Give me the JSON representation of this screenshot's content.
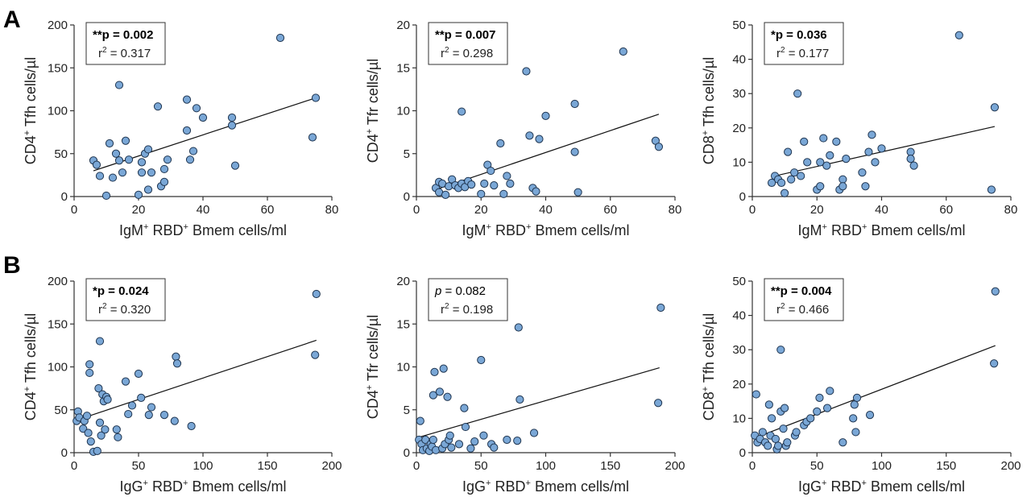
{
  "figure": {
    "rows": [
      {
        "letter": "A"
      },
      {
        "letter": "B"
      }
    ]
  },
  "chart_data": [
    {
      "type": "scatter",
      "row": 0,
      "col": 0,
      "p_label": "**p = 0.002",
      "p_bold": true,
      "r2_prefix": "r",
      "r2_sup": "2",
      "r2_value": " = 0.317",
      "xlabel": {
        "a": "IgM",
        "sa": "+",
        "b": " RBD",
        "sb": "+",
        "c": " Bmem cells/ml"
      },
      "ylabel": {
        "a": "CD4",
        "sa": "+",
        "b": " Tfh cells/µl"
      },
      "xlim": [
        0,
        80
      ],
      "ylim": [
        0,
        200
      ],
      "xticks": [
        0,
        20,
        40,
        60,
        80
      ],
      "yticks": [
        0,
        50,
        100,
        150,
        200
      ],
      "fit": [
        [
          6,
          30
        ],
        [
          75,
          115
        ]
      ],
      "points": [
        [
          6,
          42
        ],
        [
          7,
          37
        ],
        [
          8,
          24
        ],
        [
          10,
          1
        ],
        [
          11,
          62
        ],
        [
          12,
          22
        ],
        [
          13,
          50
        ],
        [
          14,
          130
        ],
        [
          14,
          42
        ],
        [
          15,
          28
        ],
        [
          16,
          65
        ],
        [
          17,
          43
        ],
        [
          20,
          2
        ],
        [
          21,
          40
        ],
        [
          21,
          28
        ],
        [
          22,
          50
        ],
        [
          23,
          55
        ],
        [
          23,
          8
        ],
        [
          24,
          28
        ],
        [
          26,
          105
        ],
        [
          27,
          12
        ],
        [
          28,
          17
        ],
        [
          28,
          32
        ],
        [
          29,
          43
        ],
        [
          35,
          113
        ],
        [
          35,
          77
        ],
        [
          36,
          43
        ],
        [
          37,
          53
        ],
        [
          38,
          103
        ],
        [
          40,
          92
        ],
        [
          49,
          92
        ],
        [
          49,
          83
        ],
        [
          50,
          36
        ],
        [
          64,
          185
        ],
        [
          74,
          69
        ],
        [
          75,
          115
        ]
      ]
    },
    {
      "type": "scatter",
      "row": 0,
      "col": 1,
      "p_label": "**p = 0.007",
      "p_bold": true,
      "r2_prefix": "r",
      "r2_sup": "2",
      "r2_value": " = 0.298",
      "xlabel": {
        "a": "IgM",
        "sa": "+",
        "b": " RBD",
        "sb": "+",
        "c": " Bmem cells/ml"
      },
      "ylabel": {
        "a": "CD4",
        "sa": "+",
        "b": " Tfr cells/µl"
      },
      "xlim": [
        0,
        80
      ],
      "ylim": [
        0,
        20
      ],
      "xticks": [
        0,
        20,
        40,
        60,
        80
      ],
      "yticks": [
        0,
        5,
        10,
        15,
        20
      ],
      "fit": [
        [
          6,
          0.8
        ],
        [
          75,
          9.6
        ]
      ],
      "points": [
        [
          6,
          1.0
        ],
        [
          7,
          1.7
        ],
        [
          7,
          0.5
        ],
        [
          8,
          1.5
        ],
        [
          9,
          0.2
        ],
        [
          10,
          1.2
        ],
        [
          11,
          2.0
        ],
        [
          12,
          1.3
        ],
        [
          13,
          1.0
        ],
        [
          14,
          1.5
        ],
        [
          14,
          9.9
        ],
        [
          15,
          1.1
        ],
        [
          16,
          1.8
        ],
        [
          17,
          1.4
        ],
        [
          20,
          0.3
        ],
        [
          21,
          1.5
        ],
        [
          22,
          3.7
        ],
        [
          23,
          3.0
        ],
        [
          24,
          1.3
        ],
        [
          26,
          6.2
        ],
        [
          27,
          0.3
        ],
        [
          28,
          2.4
        ],
        [
          29,
          1.5
        ],
        [
          34,
          14.6
        ],
        [
          35,
          7.1
        ],
        [
          36,
          1.0
        ],
        [
          37,
          0.6
        ],
        [
          38,
          6.7
        ],
        [
          40,
          9.4
        ],
        [
          49,
          10.8
        ],
        [
          49,
          5.2
        ],
        [
          50,
          0.5
        ],
        [
          64,
          16.9
        ],
        [
          74,
          6.5
        ],
        [
          75,
          5.8
        ]
      ]
    },
    {
      "type": "scatter",
      "row": 0,
      "col": 2,
      "p_label": "*p = 0.036",
      "p_bold": true,
      "r2_prefix": "r",
      "r2_sup": "2",
      "r2_value": " = 0.177",
      "xlabel": {
        "a": "IgM",
        "sa": "+",
        "b": " RBD",
        "sb": "+",
        "c": " Bmem cells/ml"
      },
      "ylabel": {
        "a": "CD8",
        "sa": "+",
        "b": " Tfh cells/µl"
      },
      "xlim": [
        0,
        80
      ],
      "ylim": [
        0,
        50
      ],
      "xticks": [
        0,
        20,
        40,
        60,
        80
      ],
      "yticks": [
        0,
        10,
        20,
        30,
        40,
        50
      ],
      "fit": [
        [
          6,
          5.8
        ],
        [
          75,
          20.4
        ]
      ],
      "points": [
        [
          6,
          4
        ],
        [
          7,
          6
        ],
        [
          8,
          5
        ],
        [
          9,
          4
        ],
        [
          10,
          1
        ],
        [
          11,
          13
        ],
        [
          12,
          5
        ],
        [
          13,
          7
        ],
        [
          14,
          30
        ],
        [
          15,
          6
        ],
        [
          16,
          16
        ],
        [
          17,
          10
        ],
        [
          20,
          2
        ],
        [
          21,
          3
        ],
        [
          21,
          10
        ],
        [
          22,
          17
        ],
        [
          23,
          9
        ],
        [
          24,
          12
        ],
        [
          26,
          16
        ],
        [
          27,
          2
        ],
        [
          28,
          5
        ],
        [
          28,
          3
        ],
        [
          29,
          11
        ],
        [
          34,
          7
        ],
        [
          35,
          3
        ],
        [
          36,
          13
        ],
        [
          37,
          18
        ],
        [
          38,
          10
        ],
        [
          40,
          14
        ],
        [
          49,
          13
        ],
        [
          49,
          11
        ],
        [
          50,
          9
        ],
        [
          64,
          47
        ],
        [
          74,
          2
        ],
        [
          75,
          26
        ]
      ]
    },
    {
      "type": "scatter",
      "row": 1,
      "col": 0,
      "p_label": "*p = 0.024",
      "p_bold": true,
      "r2_prefix": "r",
      "r2_sup": "2",
      "r2_value": " = 0.320",
      "xlabel": {
        "a": "IgG",
        "sa": "+",
        "b": " RBD",
        "sb": "+",
        "c": " Bmem cells/ml"
      },
      "ylabel": {
        "a": "CD4",
        "sa": "+",
        "b": " Tfh cells/µl"
      },
      "xlim": [
        0,
        200
      ],
      "ylim": [
        0,
        200
      ],
      "xticks": [
        0,
        50,
        100,
        150,
        200
      ],
      "yticks": [
        0,
        50,
        100,
        150,
        200
      ],
      "fit": [
        [
          2,
          38
        ],
        [
          188,
          131
        ]
      ],
      "points": [
        [
          2,
          37
        ],
        [
          3,
          48
        ],
        [
          4,
          41
        ],
        [
          7,
          28
        ],
        [
          8,
          37
        ],
        [
          10,
          43
        ],
        [
          11,
          23
        ],
        [
          12,
          93
        ],
        [
          12,
          103
        ],
        [
          13,
          13
        ],
        [
          15,
          1
        ],
        [
          18,
          2
        ],
        [
          19,
          75
        ],
        [
          20,
          35
        ],
        [
          20,
          130
        ],
        [
          21,
          20
        ],
        [
          22,
          68
        ],
        [
          23,
          60
        ],
        [
          24,
          27
        ],
        [
          25,
          65
        ],
        [
          26,
          62
        ],
        [
          33,
          27
        ],
        [
          34,
          18
        ],
        [
          40,
          83
        ],
        [
          42,
          45
        ],
        [
          45,
          55
        ],
        [
          50,
          92
        ],
        [
          52,
          64
        ],
        [
          58,
          44
        ],
        [
          60,
          53
        ],
        [
          70,
          44
        ],
        [
          78,
          37
        ],
        [
          79,
          112
        ],
        [
          80,
          104
        ],
        [
          91,
          31
        ],
        [
          187,
          114
        ],
        [
          188,
          185
        ]
      ]
    },
    {
      "type": "scatter",
      "row": 1,
      "col": 1,
      "p_label": "p = 0.082",
      "p_bold": false,
      "r2_prefix": "r",
      "r2_sup": "2",
      "r2_value": " = 0.198",
      "xlabel": {
        "a": "IgG",
        "sa": "+",
        "b": " RBD",
        "sb": "+",
        "c": " Bmem cells/ml"
      },
      "ylabel": {
        "a": "CD4",
        "sa": "+",
        "b": " Tfr cells/µl"
      },
      "xlim": [
        0,
        200
      ],
      "ylim": [
        0,
        20
      ],
      "xticks": [
        0,
        50,
        100,
        150,
        200
      ],
      "yticks": [
        0,
        5,
        10,
        15,
        20
      ],
      "fit": [
        [
          2,
          1.8
        ],
        [
          188,
          9.9
        ]
      ],
      "points": [
        [
          2,
          1.5
        ],
        [
          3,
          3.7
        ],
        [
          4,
          1.0
        ],
        [
          5,
          0.3
        ],
        [
          7,
          1.5
        ],
        [
          8,
          0.5
        ],
        [
          10,
          0.2
        ],
        [
          11,
          1.0
        ],
        [
          12,
          0.7
        ],
        [
          13,
          1.5
        ],
        [
          13,
          6.7
        ],
        [
          14,
          9.4
        ],
        [
          15,
          0.3
        ],
        [
          18,
          7.1
        ],
        [
          20,
          0.5
        ],
        [
          21,
          9.8
        ],
        [
          22,
          1.0
        ],
        [
          24,
          6.5
        ],
        [
          25,
          1.5
        ],
        [
          26,
          2.0
        ],
        [
          27,
          0.6
        ],
        [
          33,
          1.0
        ],
        [
          37,
          5.2
        ],
        [
          38,
          3.0
        ],
        [
          42,
          0.5
        ],
        [
          45,
          1.3
        ],
        [
          50,
          10.8
        ],
        [
          52,
          2.0
        ],
        [
          58,
          1.0
        ],
        [
          60,
          0.6
        ],
        [
          70,
          1.5
        ],
        [
          78,
          1.4
        ],
        [
          79,
          14.6
        ],
        [
          80,
          6.2
        ],
        [
          91,
          2.3
        ],
        [
          187,
          5.8
        ],
        [
          189,
          16.9
        ]
      ]
    },
    {
      "type": "scatter",
      "row": 1,
      "col": 2,
      "p_label": "**p = 0.004",
      "p_bold": true,
      "r2_prefix": "r",
      "r2_sup": "2",
      "r2_value": " = 0.466",
      "xlabel": {
        "a": "IgG",
        "sa": "+",
        "b": " RBD",
        "sb": "+",
        "c": " Bmem cells/ml"
      },
      "ylabel": {
        "a": "CD8",
        "sa": "+",
        "b": " Tfh cells/µl"
      },
      "xlim": [
        0,
        200
      ],
      "ylim": [
        0,
        50
      ],
      "xticks": [
        0,
        50,
        100,
        150,
        200
      ],
      "yticks": [
        0,
        10,
        20,
        30,
        40,
        50
      ],
      "fit": [
        [
          2,
          4.3
        ],
        [
          188,
          31.2
        ]
      ],
      "points": [
        [
          2,
          5
        ],
        [
          3,
          17
        ],
        [
          4,
          3
        ],
        [
          6,
          4
        ],
        [
          8,
          6
        ],
        [
          10,
          3
        ],
        [
          12,
          2
        ],
        [
          13,
          14
        ],
        [
          14,
          5
        ],
        [
          15,
          10
        ],
        [
          18,
          4
        ],
        [
          19,
          1
        ],
        [
          20,
          2
        ],
        [
          22,
          30
        ],
        [
          22,
          12
        ],
        [
          24,
          7
        ],
        [
          25,
          13
        ],
        [
          26,
          2
        ],
        [
          27,
          3
        ],
        [
          33,
          5
        ],
        [
          34,
          6
        ],
        [
          40,
          8
        ],
        [
          42,
          9
        ],
        [
          45,
          10
        ],
        [
          50,
          12
        ],
        [
          52,
          16
        ],
        [
          58,
          13
        ],
        [
          60,
          18
        ],
        [
          70,
          3
        ],
        [
          78,
          10
        ],
        [
          79,
          14
        ],
        [
          80,
          6
        ],
        [
          81,
          16
        ],
        [
          91,
          11
        ],
        [
          187,
          26
        ],
        [
          188,
          47
        ]
      ]
    }
  ]
}
